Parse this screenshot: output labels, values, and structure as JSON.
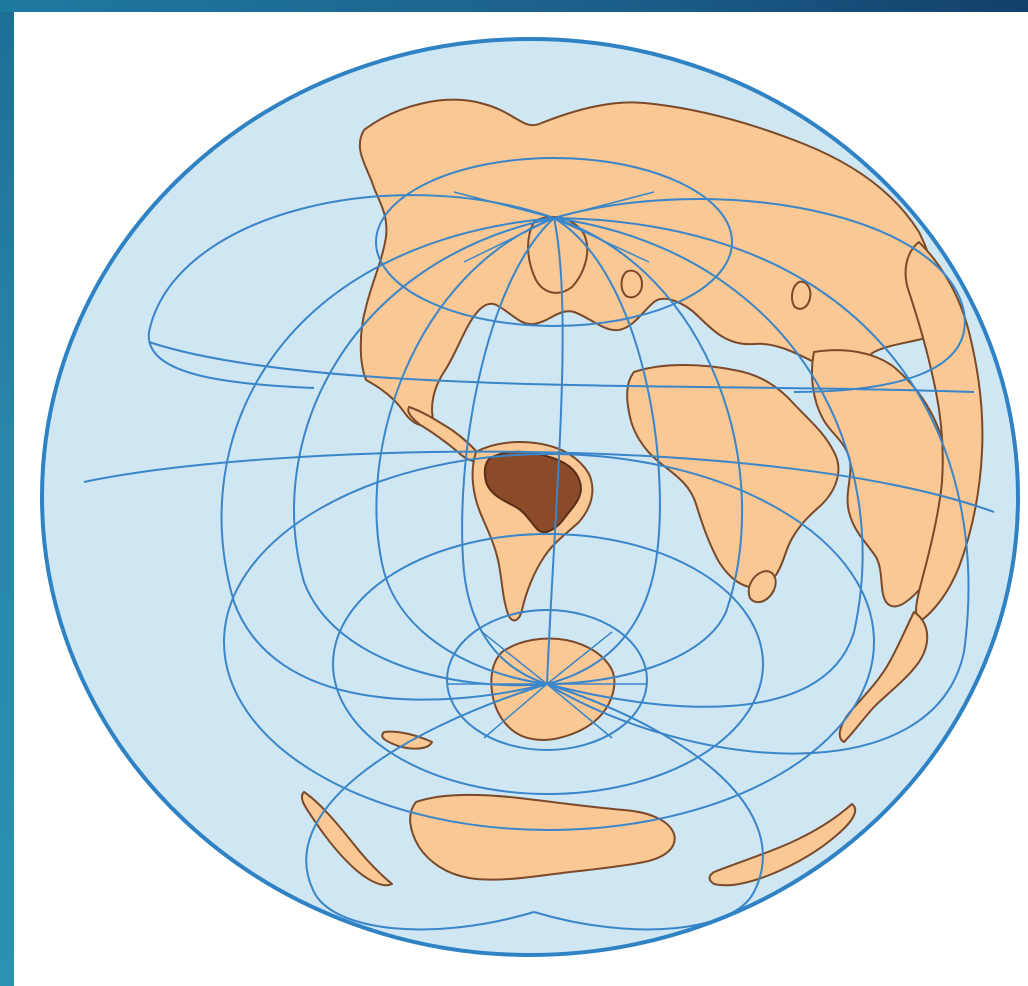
{
  "map": {
    "projection": "azimuthal",
    "highlighted_region": "brazil-region",
    "colors": {
      "frame": "#1f6f95",
      "panel": "#ffffff",
      "ocean": "#cfe6f3",
      "ocean_edge": "#2f82c4",
      "graticule": "#3a86c9",
      "land_fill": "#f9c894",
      "land_outline": "#7a4a2a",
      "highlight_fill": "#8b4a28"
    }
  }
}
